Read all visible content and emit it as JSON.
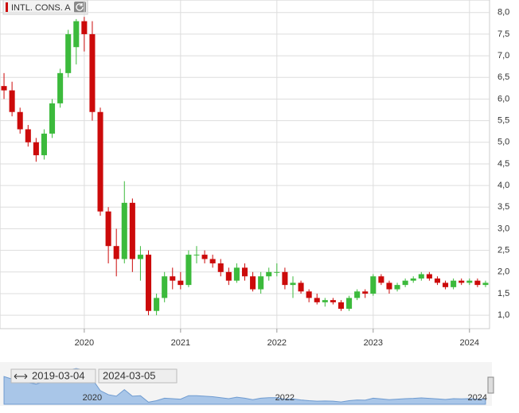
{
  "chart_data": {
    "type": "candlestick",
    "series_name": "INTL. CONS. A",
    "up_color": "#3cba3c",
    "down_color": "#cc0a0a",
    "categories": [
      null,
      null,
      null,
      null,
      null,
      null,
      null,
      null,
      null,
      null,
      "2020",
      null,
      null,
      null,
      null,
      null,
      null,
      null,
      null,
      null,
      null,
      null,
      "2021",
      null,
      null,
      null,
      null,
      null,
      null,
      null,
      null,
      null,
      null,
      null,
      "2022",
      null,
      null,
      null,
      null,
      null,
      null,
      null,
      null,
      null,
      null,
      null,
      "2023",
      null,
      null,
      null,
      null,
      null,
      null,
      null,
      null,
      null,
      null,
      null,
      "2024",
      null,
      null
    ],
    "open": [
      6.3,
      6.2,
      5.7,
      5.3,
      5.0,
      4.7,
      5.2,
      5.9,
      6.6,
      7.2,
      7.8,
      7.5,
      5.7,
      3.4,
      2.6,
      2.3,
      3.6,
      2.3,
      2.4,
      1.1,
      1.4,
      1.9,
      1.8,
      1.7,
      2.4,
      2.4,
      2.3,
      2.2,
      2.0,
      1.8,
      2.1,
      1.9,
      1.6,
      1.9,
      2.0,
      2.0,
      1.7,
      1.75,
      1.55,
      1.4,
      1.3,
      1.35,
      1.3,
      1.15,
      1.4,
      1.55,
      1.5,
      1.9,
      1.75,
      1.6,
      1.7,
      1.8,
      1.85,
      1.95,
      1.85,
      1.75,
      1.65,
      1.8,
      1.75,
      1.8,
      1.7
    ],
    "high": [
      6.6,
      6.4,
      5.8,
      5.4,
      5.1,
      5.3,
      6.0,
      6.7,
      7.6,
      7.85,
      7.9,
      7.8,
      5.8,
      3.5,
      3.0,
      4.1,
      3.7,
      2.6,
      2.5,
      1.5,
      2.0,
      2.1,
      2.0,
      2.5,
      2.6,
      2.5,
      2.4,
      2.3,
      2.1,
      2.2,
      2.2,
      2.0,
      2.0,
      2.1,
      2.2,
      2.1,
      1.9,
      1.8,
      1.6,
      1.5,
      1.4,
      1.4,
      1.35,
      1.45,
      1.6,
      1.6,
      1.95,
      1.95,
      1.8,
      1.75,
      1.85,
      1.9,
      2.0,
      2.0,
      1.9,
      1.8,
      1.85,
      1.85,
      1.85,
      1.85,
      1.8
    ],
    "low": [
      6.0,
      5.6,
      5.2,
      4.9,
      4.55,
      4.6,
      5.1,
      5.8,
      6.5,
      6.8,
      7.1,
      5.5,
      3.3,
      2.2,
      1.9,
      2.2,
      2.0,
      1.8,
      1.0,
      1.0,
      1.3,
      1.6,
      1.6,
      1.65,
      2.2,
      2.2,
      2.1,
      1.9,
      1.7,
      1.75,
      1.8,
      1.55,
      1.5,
      1.8,
      1.9,
      1.6,
      1.4,
      1.5,
      1.3,
      1.25,
      1.2,
      1.25,
      1.1,
      1.1,
      1.35,
      1.4,
      1.45,
      1.7,
      1.5,
      1.55,
      1.65,
      1.75,
      1.8,
      1.8,
      1.7,
      1.6,
      1.6,
      1.7,
      1.7,
      1.65,
      1.65
    ],
    "close": [
      6.2,
      5.7,
      5.3,
      5.0,
      4.7,
      5.2,
      5.9,
      6.6,
      7.5,
      7.8,
      7.5,
      5.7,
      3.4,
      2.6,
      2.3,
      3.6,
      2.3,
      2.4,
      1.1,
      1.4,
      1.9,
      1.8,
      1.7,
      2.4,
      2.4,
      2.3,
      2.2,
      2.0,
      1.8,
      2.1,
      1.9,
      1.6,
      1.9,
      2.0,
      2.0,
      1.7,
      1.75,
      1.55,
      1.4,
      1.3,
      1.35,
      1.3,
      1.15,
      1.4,
      1.55,
      1.5,
      1.9,
      1.75,
      1.6,
      1.7,
      1.8,
      1.85,
      1.95,
      1.85,
      1.75,
      1.65,
      1.8,
      1.75,
      1.8,
      1.7,
      1.75
    ],
    "ylim": [
      0.69,
      8.29
    ],
    "yticks": [
      {
        "value": 1,
        "label": "1,0"
      },
      {
        "value": 1.5,
        "label": "1,5"
      },
      {
        "value": 2,
        "label": "2,0"
      },
      {
        "value": 2.5,
        "label": "2,5"
      },
      {
        "value": 3,
        "label": "3,0"
      },
      {
        "value": 3.5,
        "label": "3,5"
      },
      {
        "value": 4,
        "label": "4,0"
      },
      {
        "value": 4.5,
        "label": "4,5"
      },
      {
        "value": 5,
        "label": "5,0"
      },
      {
        "value": 5.5,
        "label": "5,5"
      },
      {
        "value": 6,
        "label": "6,0"
      },
      {
        "value": 6.5,
        "label": "6,5"
      },
      {
        "value": 7,
        "label": "7,0"
      },
      {
        "value": 7.5,
        "label": "7,5"
      },
      {
        "value": 8,
        "label": "8,0"
      }
    ],
    "grid": true,
    "navigator": {
      "start": "2019-03-04",
      "end": "2024-03-05",
      "labels": [
        "2020",
        "2022",
        "2024"
      ],
      "color": "#a9c6e8"
    }
  }
}
